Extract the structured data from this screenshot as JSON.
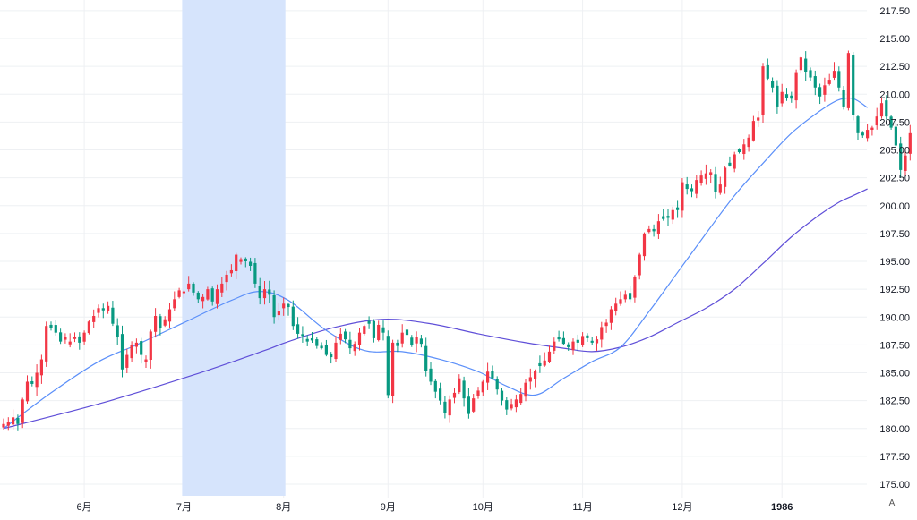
{
  "chart_data": {
    "type": "candlestick",
    "colors": {
      "up": "#f23645",
      "down": "#089981",
      "ma_fast": "#5b8ff9",
      "ma_slow": "#5f4fd8",
      "highlight": "#d6e4fc",
      "grid": "#eef0f3"
    },
    "y_axis": {
      "min": 175,
      "max": 217.5,
      "step": 2.5
    },
    "y_ticks": [
      "175.00",
      "177.50",
      "180.00",
      "182.50",
      "185.00",
      "187.50",
      "190.00",
      "192.50",
      "195.00",
      "197.50",
      "200.00",
      "202.50",
      "205.00",
      "207.50",
      "210.00",
      "212.50",
      "215.00",
      "217.50"
    ],
    "x_ticks": [
      {
        "label": "6月",
        "index": 17,
        "bold": false
      },
      {
        "label": "7月",
        "index": 38,
        "bold": false
      },
      {
        "label": "8月",
        "index": 59,
        "bold": false
      },
      {
        "label": "9月",
        "index": 81,
        "bold": false
      },
      {
        "label": "10月",
        "index": 101,
        "bold": false
      },
      {
        "label": "11月",
        "index": 122,
        "bold": false
      },
      {
        "label": "12月",
        "index": 143,
        "bold": false
      },
      {
        "label": "1986",
        "index": 164,
        "bold": true
      }
    ],
    "highlight_range": [
      38,
      59
    ],
    "closes": [
      180.4,
      180.6,
      181.0,
      180.4,
      182.6,
      184.2,
      184.0,
      185.0,
      186.2,
      189.2,
      189.0,
      188.6,
      187.8,
      188.2,
      187.8,
      188.2,
      187.7,
      188.6,
      189.6,
      190.1,
      190.8,
      190.6,
      191.0,
      189.4,
      188.2,
      185.3,
      186.6,
      187.5,
      187.7,
      186.6,
      186.2,
      188.7,
      190.1,
      189.0,
      189.8,
      190.7,
      191.6,
      192.4,
      192.3,
      193.0,
      192.2,
      191.6,
      191.8,
      192.5,
      191.4,
      192.5,
      193.0,
      193.8,
      194.2,
      195.6,
      195.2,
      195.0,
      194.6,
      193.0,
      191.7,
      192.5,
      192.0,
      190.0,
      190.5,
      191.2,
      190.9,
      189.2,
      188.5,
      188.3,
      187.8,
      187.9,
      187.4,
      187.2,
      186.6,
      186.4,
      187.7,
      188.5,
      188.0,
      187.2,
      187.6,
      188.6,
      189.2,
      189.4,
      188.1,
      189.3,
      188.6,
      183.0,
      187.7,
      187.4,
      188.6,
      188.4,
      187.5,
      188.2,
      187.6,
      185.2,
      184.2,
      183.3,
      182.5,
      181.4,
      182.6,
      183.2,
      184.5,
      182.7,
      181.3,
      182.7,
      183.4,
      184.2,
      185.1,
      184.5,
      183.5,
      182.5,
      181.7,
      182.2,
      182.6,
      183.1,
      184.1,
      184.6,
      185.2,
      185.6,
      186.1,
      186.9,
      187.8,
      188.0,
      187.6,
      187.3,
      187.8,
      187.7,
      188.3,
      188.1,
      187.7,
      188.0,
      189.1,
      189.5,
      190.7,
      191.2,
      191.6,
      192.0,
      191.6,
      193.6,
      195.6,
      197.5,
      197.9,
      197.7,
      198.6,
      198.8,
      198.9,
      199.6,
      199.6,
      202.1,
      201.5,
      201.3,
      202.3,
      202.7,
      202.9,
      203.0,
      201.2,
      201.9,
      203.4,
      203.6,
      204.6,
      204.8,
      205.5,
      206.1,
      207.6,
      207.9,
      212.5,
      211.4,
      210.6,
      208.9,
      210.2,
      209.7,
      209.6,
      211.9,
      213.3,
      212.0,
      211.5,
      210.6,
      209.8,
      210.8,
      211.3,
      212.1,
      210.6,
      208.9,
      213.7,
      208.1,
      206.5,
      206.3,
      206.8,
      207.0,
      208.0,
      209.2,
      208.0,
      207.0,
      205.4,
      203.2,
      204.5,
      206.5
    ],
    "ma_fast": {
      "anchors": [
        [
          0,
          180.0
        ],
        [
          10,
          183.2
        ],
        [
          20,
          186.0
        ],
        [
          28,
          187.5
        ],
        [
          38,
          189.5
        ],
        [
          48,
          191.5
        ],
        [
          54,
          192.3
        ],
        [
          60,
          191.5
        ],
        [
          68,
          188.8
        ],
        [
          76,
          187.0
        ],
        [
          84,
          186.9
        ],
        [
          92,
          186.2
        ],
        [
          100,
          185.1
        ],
        [
          106,
          183.8
        ],
        [
          112,
          183.0
        ],
        [
          118,
          184.5
        ],
        [
          124,
          186.0
        ],
        [
          130,
          187.3
        ],
        [
          136,
          190.5
        ],
        [
          142,
          194.0
        ],
        [
          148,
          197.5
        ],
        [
          154,
          200.9
        ],
        [
          160,
          203.8
        ],
        [
          166,
          206.5
        ],
        [
          172,
          208.5
        ],
        [
          176,
          209.5
        ],
        [
          179,
          209.6
        ],
        [
          182,
          208.8
        ]
      ]
    },
    "ma_slow": {
      "anchors": [
        [
          0,
          180.0
        ],
        [
          20,
          182.2
        ],
        [
          40,
          184.8
        ],
        [
          55,
          187.0
        ],
        [
          60,
          187.8
        ],
        [
          70,
          189.1
        ],
        [
          80,
          189.8
        ],
        [
          90,
          189.4
        ],
        [
          100,
          188.5
        ],
        [
          110,
          187.7
        ],
        [
          118,
          187.2
        ],
        [
          124,
          186.9
        ],
        [
          130,
          187.3
        ],
        [
          136,
          188.2
        ],
        [
          142,
          189.5
        ],
        [
          148,
          190.8
        ],
        [
          154,
          192.5
        ],
        [
          160,
          194.8
        ],
        [
          166,
          197.2
        ],
        [
          172,
          199.2
        ],
        [
          176,
          200.3
        ],
        [
          179,
          200.9
        ],
        [
          182,
          201.5
        ]
      ]
    }
  }
}
